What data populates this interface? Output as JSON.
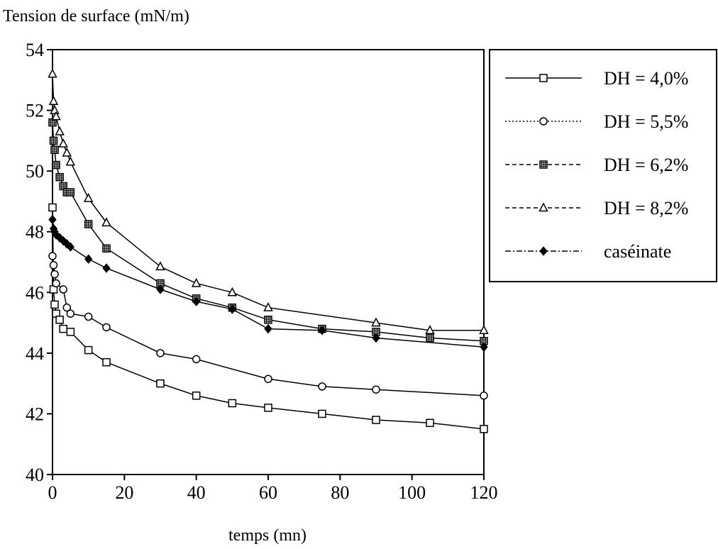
{
  "chart_data": {
    "type": "line",
    "ylabel": "Tension de surface (mN/m)",
    "xlabel": "temps (mn)",
    "xlim": [
      0,
      120
    ],
    "ylim": [
      40,
      54
    ],
    "x_ticks": [
      0,
      20,
      40,
      60,
      80,
      100,
      120
    ],
    "y_ticks": [
      40,
      42,
      44,
      46,
      48,
      50,
      52,
      54
    ],
    "grid": false,
    "legend_position": "right",
    "series": [
      {
        "name": "DH = 4,0%",
        "marker": "square",
        "dash": "solid",
        "x": [
          0,
          0.3,
          0.6,
          1,
          2,
          3,
          5,
          10,
          15,
          30,
          40,
          50,
          60,
          75,
          90,
          105,
          120
        ],
        "y": [
          48.8,
          46.1,
          45.6,
          45.3,
          45.1,
          44.8,
          44.7,
          44.1,
          43.7,
          43.0,
          42.6,
          42.35,
          42.2,
          42.0,
          41.8,
          41.7,
          41.5
        ]
      },
      {
        "name": "DH = 5,5%",
        "marker": "circle",
        "dash": "dotted",
        "x": [
          0,
          0.3,
          0.6,
          1,
          3,
          4,
          5,
          10,
          15,
          30,
          40,
          60,
          75,
          90,
          120
        ],
        "y": [
          47.2,
          46.9,
          46.6,
          46.3,
          46.1,
          45.5,
          45.3,
          45.2,
          44.85,
          44.0,
          43.8,
          43.15,
          42.9,
          42.8,
          42.6
        ]
      },
      {
        "name": "DH = 6,2%",
        "marker": "square-cross",
        "dash": "dashed",
        "x": [
          0,
          0.3,
          0.6,
          1,
          2,
          3,
          4,
          5,
          10,
          15,
          30,
          40,
          50,
          60,
          75,
          90,
          105,
          120
        ],
        "y": [
          51.6,
          51.0,
          50.7,
          50.2,
          49.8,
          49.5,
          49.3,
          49.3,
          48.25,
          47.45,
          46.3,
          45.8,
          45.5,
          45.1,
          44.8,
          44.7,
          44.5,
          44.4
        ]
      },
      {
        "name": "DH = 8,2%",
        "marker": "triangle",
        "dash": "dashed",
        "x": [
          0,
          0.3,
          0.6,
          1,
          2,
          3,
          4,
          5,
          10,
          15,
          30,
          40,
          50,
          60,
          90,
          105,
          120
        ],
        "y": [
          53.2,
          52.3,
          52.0,
          51.8,
          51.3,
          50.9,
          50.6,
          50.3,
          49.1,
          48.3,
          46.85,
          46.3,
          46.0,
          45.5,
          45.0,
          44.75,
          44.75
        ]
      },
      {
        "name": "caséinate",
        "marker": "diamond",
        "dash": "dashdot",
        "x": [
          0,
          0.3,
          0.6,
          1,
          2,
          3,
          4,
          5,
          10,
          15,
          30,
          40,
          50,
          60,
          75,
          90,
          120
        ],
        "y": [
          48.4,
          48.1,
          48.0,
          47.9,
          47.8,
          47.7,
          47.6,
          47.5,
          47.1,
          46.8,
          46.1,
          45.7,
          45.45,
          44.8,
          44.75,
          44.5,
          44.2
        ]
      }
    ]
  }
}
